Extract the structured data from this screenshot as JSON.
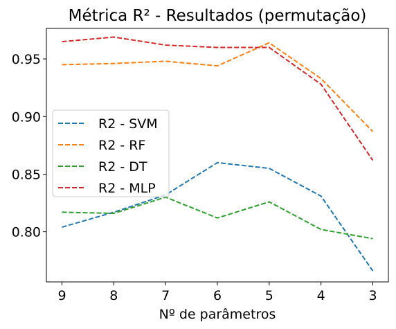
{
  "chart_data": {
    "type": "line",
    "title": "Métrica R² - Resultados (permutação)",
    "xlabel": "Nº de parâmetros",
    "ylabel": "",
    "categories": [
      "9",
      "8",
      "7",
      "6",
      "5",
      "4",
      "3"
    ],
    "ylim": [
      0.7565,
      0.9765
    ],
    "yticks": [
      0.8,
      0.85,
      0.9,
      0.95
    ],
    "ytick_labels": [
      "0.80",
      "0.85",
      "0.90",
      "0.95"
    ],
    "grid": false,
    "legend_position": "center-left",
    "line_style": "dashed",
    "series": [
      {
        "name": "R2 - SVM",
        "color": "#1f77b4",
        "values": [
          0.804,
          0.817,
          0.832,
          0.86,
          0.855,
          0.831,
          0.766
        ]
      },
      {
        "name": "R2 - RF",
        "color": "#ff7f0e",
        "values": [
          0.945,
          0.946,
          0.948,
          0.944,
          0.964,
          0.933,
          0.887
        ]
      },
      {
        "name": "R2 - DT",
        "color": "#2ca02c",
        "values": [
          0.817,
          0.816,
          0.83,
          0.812,
          0.826,
          0.802,
          0.794
        ]
      },
      {
        "name": "R2 - MLP",
        "color": "#d62728",
        "values": [
          0.965,
          0.969,
          0.962,
          0.96,
          0.96,
          0.928,
          0.862
        ]
      }
    ]
  }
}
